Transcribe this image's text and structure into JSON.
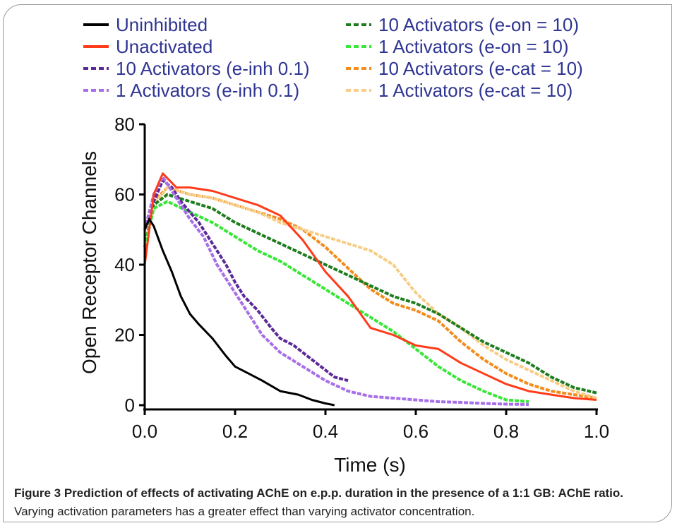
{
  "chart_data": {
    "type": "line",
    "xlabel": "Time (s)",
    "ylabel": "Open Receptor Channels",
    "xlim": [
      0,
      1.0
    ],
    "ylim": [
      0,
      80
    ],
    "xticks": [
      "0.0",
      "0.2",
      "0.4",
      "0.6",
      "0.8",
      "1.0"
    ],
    "xtick_values": [
      0,
      0.2,
      0.4,
      0.6,
      0.8,
      1.0
    ],
    "yticks": [
      "0",
      "20",
      "40",
      "60",
      "80"
    ],
    "ytick_values": [
      0,
      20,
      40,
      60,
      80
    ],
    "grid": false,
    "legend_position": "top",
    "series": [
      {
        "name": "Uninhibited",
        "color": "#000000",
        "style": "solid",
        "x": [
          0,
          0.01,
          0.02,
          0.04,
          0.06,
          0.08,
          0.1,
          0.12,
          0.15,
          0.18,
          0.2,
          0.23,
          0.26,
          0.3,
          0.34,
          0.37,
          0.4,
          0.42
        ],
        "y": [
          50,
          53,
          51,
          44,
          38,
          31,
          26,
          23,
          19,
          14,
          11,
          9,
          7,
          4,
          3,
          1.5,
          0.5,
          0
        ]
      },
      {
        "name": "Unactivated",
        "color": "#ff3b1a",
        "style": "solid",
        "x": [
          0,
          0.02,
          0.04,
          0.07,
          0.1,
          0.15,
          0.2,
          0.25,
          0.3,
          0.35,
          0.4,
          0.45,
          0.5,
          0.55,
          0.6,
          0.65,
          0.7,
          0.75,
          0.8,
          0.85,
          0.9,
          0.95,
          1.0
        ],
        "y": [
          40,
          60,
          66,
          62,
          62,
          61,
          59,
          57,
          54,
          47,
          38,
          31,
          22,
          20,
          17,
          16,
          12,
          9,
          6,
          4,
          3,
          2,
          1.5
        ]
      },
      {
        "name": "10 Activators (e-inh 0.1)",
        "color": "#5b2a99",
        "style": "dashed",
        "x": [
          0,
          0.02,
          0.04,
          0.06,
          0.08,
          0.1,
          0.12,
          0.15,
          0.18,
          0.2,
          0.22,
          0.25,
          0.28,
          0.3,
          0.33,
          0.36,
          0.4,
          0.42,
          0.45
        ],
        "y": [
          50,
          58,
          64,
          62,
          58,
          55,
          52,
          46,
          40,
          35,
          31,
          27,
          22,
          19,
          17,
          14,
          10,
          8,
          7
        ]
      },
      {
        "name": "1 Activators (e-inh 0.1)",
        "color": "#a66ee8",
        "style": "dashed",
        "x": [
          0,
          0.02,
          0.04,
          0.06,
          0.08,
          0.1,
          0.13,
          0.16,
          0.2,
          0.23,
          0.26,
          0.3,
          0.35,
          0.4,
          0.45,
          0.5,
          0.55,
          0.6,
          0.65,
          0.7,
          0.75,
          0.8,
          0.85
        ],
        "y": [
          50,
          60,
          65,
          61,
          57,
          53,
          48,
          40,
          32,
          26,
          20,
          15,
          11,
          7,
          4,
          2.5,
          2,
          1.5,
          1,
          0.8,
          0.5,
          0.3,
          0.2
        ]
      },
      {
        "name": "10 Activators (e-on = 10)",
        "color": "#1e7d1e",
        "style": "dashed",
        "x": [
          0,
          0.02,
          0.05,
          0.1,
          0.15,
          0.2,
          0.25,
          0.3,
          0.35,
          0.4,
          0.45,
          0.5,
          0.55,
          0.6,
          0.65,
          0.7,
          0.75,
          0.8,
          0.85,
          0.9,
          0.95,
          1.0
        ],
        "y": [
          45,
          57,
          60,
          58,
          56,
          52,
          49,
          46,
          43,
          40,
          37,
          34,
          31,
          29,
          26,
          22,
          18,
          15,
          12,
          8,
          5,
          3.5
        ]
      },
      {
        "name": "1 Activators (e-on = 10)",
        "color": "#37e637",
        "style": "dashed",
        "x": [
          0,
          0.02,
          0.05,
          0.1,
          0.15,
          0.2,
          0.25,
          0.3,
          0.35,
          0.4,
          0.45,
          0.5,
          0.55,
          0.6,
          0.65,
          0.7,
          0.75,
          0.8,
          0.85
        ],
        "y": [
          45,
          56,
          58,
          55,
          52,
          48,
          44,
          41,
          37,
          33,
          29,
          25,
          21,
          16,
          11,
          7,
          4,
          1.5,
          1
        ]
      },
      {
        "name": "10 Activators (e-cat = 10)",
        "color": "#f28c1c",
        "style": "dashed",
        "x": [
          0,
          0.02,
          0.05,
          0.1,
          0.15,
          0.2,
          0.25,
          0.3,
          0.35,
          0.4,
          0.45,
          0.5,
          0.55,
          0.6,
          0.65,
          0.7,
          0.75,
          0.8,
          0.85,
          0.9,
          0.95,
          1.0
        ],
        "y": [
          45,
          58,
          62,
          60,
          59,
          57,
          55,
          53,
          50,
          45,
          39,
          33,
          29,
          27,
          24,
          18,
          13,
          9,
          6,
          4,
          3,
          2
        ]
      },
      {
        "name": "1 Activators (e-cat = 10)",
        "color": "#f7cd86",
        "style": "dashed",
        "x": [
          0,
          0.02,
          0.05,
          0.1,
          0.15,
          0.2,
          0.25,
          0.3,
          0.35,
          0.4,
          0.45,
          0.5,
          0.55,
          0.6,
          0.65,
          0.7,
          0.75,
          0.8,
          0.85,
          0.9,
          0.95,
          1.0
        ],
        "y": [
          45,
          57,
          62,
          60,
          59,
          57,
          55,
          52,
          50,
          48,
          46,
          44,
          40,
          32,
          26,
          22,
          17,
          13,
          10,
          7,
          4,
          2
        ]
      }
    ]
  },
  "caption": {
    "title": "Figure 3 Prediction of effects of activating AChE on e.p.p. duration in the presence of a 1:1 GB: AChE ratio.",
    "body": "Varying activation parameters has a greater effect than varying activator concentration."
  }
}
